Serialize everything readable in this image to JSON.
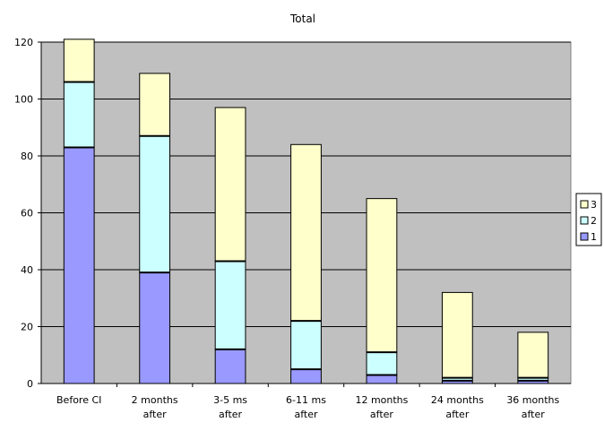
{
  "chart_data": {
    "type": "bar",
    "stacked": true,
    "title": "Total",
    "categories": [
      [
        "Before CI"
      ],
      [
        "2 months",
        "after"
      ],
      [
        "3-5 ms",
        "after"
      ],
      [
        "6-11 ms",
        "after"
      ],
      [
        "12 months",
        "after"
      ],
      [
        "24 months",
        "after"
      ],
      [
        "36 months",
        "after"
      ]
    ],
    "series": [
      {
        "name": "1",
        "color": "#9999ff",
        "values": [
          83,
          39,
          12,
          5,
          3,
          1,
          1
        ]
      },
      {
        "name": "2",
        "color": "#ccffff",
        "values": [
          23,
          48,
          31,
          17,
          8,
          1,
          1
        ]
      },
      {
        "name": "3",
        "color": "#ffffcc",
        "values": [
          15,
          22,
          54,
          62,
          54,
          30,
          16
        ]
      }
    ],
    "ylim": [
      0,
      120
    ],
    "yticks": [
      0,
      20,
      40,
      60,
      80,
      100,
      120
    ],
    "grid": true,
    "plot_background": "#c0c0c0",
    "legend_position": "right"
  }
}
